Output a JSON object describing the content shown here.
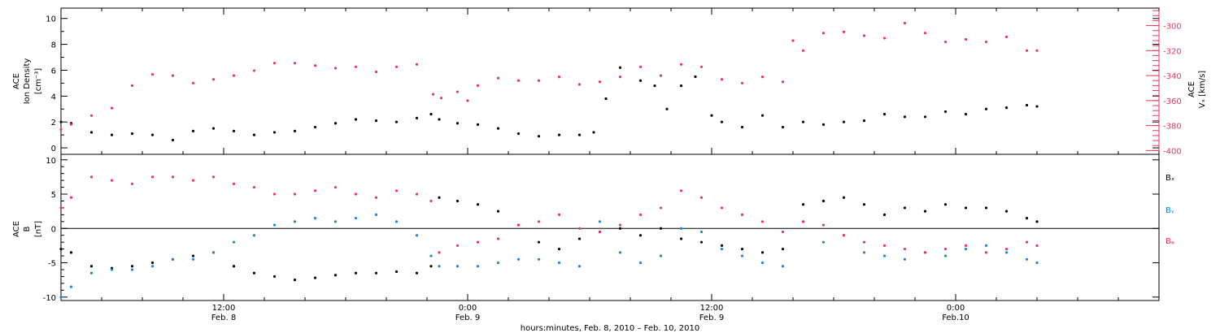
{
  "colors": {
    "black": "#000000",
    "red": "#e8375f",
    "blue": "#1d86d6"
  },
  "xaxis": {
    "label": "hours:minutes, Feb. 8, 2010 – Feb. 10, 2010",
    "range_hours": [
      0,
      54
    ],
    "minor_tick_hours": 2,
    "major_ticks": [
      {
        "hour": 8,
        "time": "12:00",
        "date": "Feb. 8"
      },
      {
        "hour": 20,
        "time": "0:00",
        "date": "Feb. 9"
      },
      {
        "hour": 32,
        "time": "12:00",
        "date": "Feb. 9"
      },
      {
        "hour": 44,
        "time": "0:00",
        "date": "Feb.10"
      }
    ]
  },
  "chart_data": [
    {
      "type": "scatter",
      "panel": "top",
      "ylabel_left": [
        "ACE",
        "Ion Density",
        "[cm⁻³]"
      ],
      "ylabel_right": [
        "ACE",
        "Vₓ [km/s]"
      ],
      "ylim": [
        -0.5,
        10.8
      ],
      "yticks": [
        "0",
        "2",
        "4",
        "6",
        "8",
        "10"
      ],
      "ylim_right": [
        -403,
        -286
      ],
      "yticks_right": [
        "-300",
        "-320",
        "-340",
        "-360",
        "-380",
        "-400"
      ],
      "series": [
        {
          "color_key": "black",
          "axis": "left",
          "x": [
            0,
            0.5,
            1.5,
            2.5,
            3.5,
            4.5,
            5.5,
            6.5,
            7.5,
            8.5,
            9.5,
            10.5,
            11.5,
            12.5,
            13.5,
            14.5,
            15.5,
            16.5,
            17.5,
            18.2,
            18.6,
            19.5,
            20.5,
            21.5,
            22.5,
            23.5,
            24.5,
            25.5,
            26.2,
            26.8,
            27.5,
            28.5,
            29.2,
            29.8,
            30.5,
            31.2,
            32,
            32.5,
            33.5,
            34.5,
            35.5,
            36.5,
            37.5,
            38.5,
            39.5,
            40.5,
            41.5,
            42.5,
            43.5,
            44.5,
            45.5,
            46.5,
            47.5,
            48
          ],
          "y": [
            2.0,
            1.9,
            1.2,
            1.0,
            1.1,
            1.0,
            0.6,
            1.3,
            1.5,
            1.3,
            1.0,
            1.2,
            1.3,
            1.6,
            1.9,
            2.2,
            2.1,
            2.0,
            2.3,
            2.6,
            2.2,
            1.9,
            1.8,
            1.5,
            1.1,
            0.9,
            1.0,
            1.0,
            1.2,
            3.8,
            6.2,
            5.2,
            4.8,
            3.0,
            4.8,
            5.5,
            2.5,
            2.0,
            1.6,
            2.5,
            1.6,
            2.0,
            1.8,
            2.0,
            2.1,
            2.6,
            2.4,
            2.4,
            2.8,
            2.6,
            3.0,
            3.1,
            3.3,
            3.2
          ]
        },
        {
          "color_key": "red",
          "axis": "right",
          "x": [
            0,
            0.5,
            1.5,
            2.5,
            3.5,
            4.5,
            5.5,
            6.5,
            7.5,
            8.5,
            9.5,
            10.5,
            11.5,
            12.5,
            13.5,
            14.5,
            15.5,
            16.5,
            17.5,
            18.3,
            18.7,
            19.5,
            20,
            20.5,
            21.5,
            22.5,
            23.5,
            24.5,
            25.5,
            26.5,
            27.5,
            28.5,
            29.5,
            30.5,
            31.5,
            32.5,
            33.5,
            34.5,
            35.5,
            36,
            36.5,
            37.5,
            38.5,
            39.5,
            40.5,
            41.5,
            42.5,
            43.5,
            44.5,
            45.5,
            46.5,
            47.5,
            48
          ],
          "y": [
            -383,
            -379,
            -372,
            -366,
            -348,
            -339,
            -340,
            -346,
            -343,
            -340,
            -336,
            -330,
            -330,
            -332,
            -334,
            -333,
            -337,
            -333,
            -331,
            -355,
            -358,
            -353,
            -360,
            -348,
            -342,
            -344,
            -344,
            -341,
            -347,
            -345,
            -341,
            -333,
            -340,
            -331,
            -333,
            -343,
            -346,
            -341,
            -345,
            -312,
            -320,
            -306,
            -305,
            -308,
            -310,
            -298,
            -306,
            -313,
            -311,
            -313,
            -309,
            -320,
            -320
          ]
        }
      ]
    },
    {
      "type": "scatter",
      "panel": "bottom",
      "ylabel_left": [
        "ACE",
        "B",
        "[nT]"
      ],
      "ylim": [
        -10.5,
        10.8
      ],
      "yticks": [
        "10",
        "5",
        "0",
        "-5",
        "-10"
      ],
      "series": [
        {
          "name": "Bₓ",
          "color_key": "black",
          "x": [
            0,
            0.5,
            1.5,
            2.5,
            3.5,
            4.5,
            5.5,
            6.5,
            7.5,
            8.5,
            9.5,
            10.5,
            11.5,
            12.5,
            13.5,
            14.5,
            15.5,
            16.5,
            17.5,
            18.2,
            18.6,
            19.5,
            20.5,
            21.5,
            22.5,
            23.5,
            24.5,
            25.5,
            26.5,
            27.5,
            28.5,
            29.5,
            30.5,
            31.5,
            32.5,
            33.5,
            34.5,
            35.5,
            36.5,
            37.5,
            38.5,
            39.5,
            40.5,
            41.5,
            42.5,
            43.5,
            44.5,
            45.5,
            46.5,
            47.5,
            48
          ],
          "y": [
            -3.0,
            -3.5,
            -5.5,
            -5.8,
            -5.5,
            -5.0,
            -4.5,
            -4.0,
            -3.5,
            -5.5,
            -6.5,
            -7.0,
            -7.5,
            -7.2,
            -6.8,
            -6.5,
            -6.5,
            -6.3,
            -6.5,
            -5.5,
            4.5,
            4.0,
            3.5,
            2.5,
            0.5,
            -2.0,
            -3.0,
            -1.5,
            -0.5,
            0.0,
            -1.0,
            0.0,
            -1.5,
            -2.0,
            -2.5,
            -3.0,
            -3.5,
            -3.0,
            3.5,
            4.0,
            4.5,
            3.5,
            2.0,
            3.0,
            2.5,
            3.5,
            3.0,
            3.0,
            2.5,
            1.5,
            1.0
          ]
        },
        {
          "name": "Bᵧ",
          "color_key": "blue",
          "x": [
            0,
            0.5,
            1.5,
            2.5,
            3.5,
            4.5,
            5.5,
            6.5,
            7.5,
            8.5,
            9.5,
            10.5,
            11.5,
            12.5,
            13.5,
            14.5,
            15.5,
            16.5,
            17.5,
            18.2,
            18.6,
            19.5,
            20.5,
            21.5,
            22.5,
            23.5,
            24.5,
            25.5,
            26.5,
            27.5,
            28.5,
            29.5,
            30.5,
            31.5,
            32.5,
            33.5,
            34.5,
            35.5,
            36.5,
            37.5,
            38.5,
            39.5,
            40.5,
            41.5,
            42.5,
            43.5,
            44.5,
            45.5,
            46.5,
            47.5,
            48
          ],
          "y": [
            -10.0,
            -8.5,
            -6.5,
            -6.0,
            -6.0,
            -5.5,
            -4.5,
            -4.5,
            -3.5,
            -2.0,
            -1.0,
            0.5,
            1.0,
            1.5,
            1.0,
            1.5,
            2.0,
            1.0,
            -1.0,
            -4.0,
            -5.5,
            -5.5,
            -5.5,
            -5.0,
            -4.5,
            -4.5,
            -5.0,
            -5.5,
            1.0,
            -3.5,
            -5.0,
            -4.0,
            0.0,
            -0.5,
            -3.0,
            -4.0,
            -5.0,
            -5.5,
            1.0,
            -2.0,
            -1.0,
            -3.5,
            -4.0,
            -4.5,
            -3.5,
            -4.0,
            -3.0,
            -2.5,
            -3.5,
            -4.5,
            -5.0
          ]
        },
        {
          "name": "Bᵩ",
          "color_key": "red",
          "x": [
            0,
            0.5,
            1.5,
            2.5,
            3.5,
            4.5,
            5.5,
            6.5,
            7.5,
            8.5,
            9.5,
            10.5,
            11.5,
            12.5,
            13.5,
            14.5,
            15.5,
            16.5,
            17.5,
            18.2,
            18.6,
            19.5,
            20.5,
            21.5,
            22.5,
            23.5,
            24.5,
            25.5,
            26.5,
            27.5,
            28.5,
            29.5,
            30.5,
            31.5,
            32.5,
            33.5,
            34.5,
            35.5,
            36.5,
            37.5,
            38.5,
            39.5,
            40.5,
            41.5,
            42.5,
            43.5,
            44.5,
            45.5,
            46.5,
            47.5,
            48
          ],
          "y": [
            3.0,
            4.5,
            7.5,
            7.0,
            6.5,
            7.5,
            7.5,
            7.0,
            7.5,
            6.5,
            6.0,
            5.0,
            5.0,
            5.5,
            6.0,
            5.0,
            4.5,
            5.5,
            5.0,
            4.0,
            -3.5,
            -2.5,
            -2.0,
            -1.5,
            0.5,
            1.0,
            2.0,
            0.0,
            -0.5,
            0.5,
            2.0,
            3.0,
            5.5,
            4.5,
            3.0,
            2.0,
            1.0,
            -0.5,
            1.0,
            0.5,
            -1.0,
            -2.0,
            -2.5,
            -3.0,
            -3.5,
            -3.0,
            -2.5,
            -3.5,
            -3.0,
            -2.0,
            -2.5
          ]
        }
      ]
    }
  ]
}
